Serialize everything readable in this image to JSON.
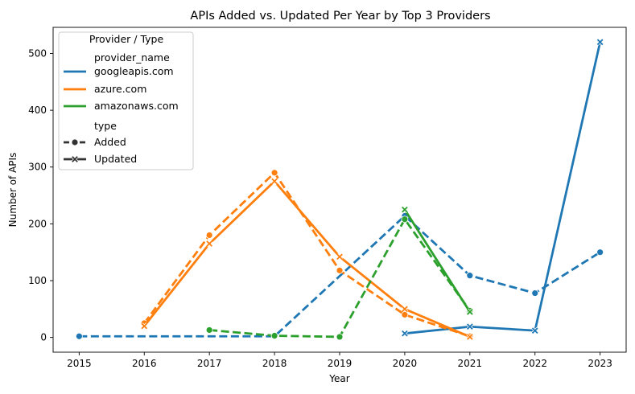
{
  "chart_data": {
    "type": "line",
    "title": "APIs Added vs. Updated Per Year by Top 3 Providers",
    "xlabel": "Year",
    "ylabel": "Number of APIs",
    "x_ticks": [
      2015,
      2016,
      2017,
      2018,
      2019,
      2020,
      2021,
      2022,
      2023
    ],
    "y_ticks": [
      0,
      100,
      200,
      300,
      400,
      500
    ],
    "xlim": [
      2014.6,
      2023.4
    ],
    "ylim": [
      -26,
      546
    ],
    "grid": false,
    "legend": {
      "title": "Provider / Type",
      "placement": "upper-left",
      "provider_header": "provider_name",
      "type_header": "type",
      "providers": [
        {
          "label": "googleapis.com",
          "color": "#1f77b4"
        },
        {
          "label": "azure.com",
          "color": "#ff7f0e"
        },
        {
          "label": "amazonaws.com",
          "color": "#2ca02c"
        }
      ],
      "types": [
        {
          "label": "Added",
          "style": "dashed",
          "marker": "circle"
        },
        {
          "label": "Updated",
          "style": "solid",
          "marker": "x"
        }
      ]
    },
    "series": [
      {
        "provider": "googleapis.com",
        "type": "Added",
        "color": "#1f77b4",
        "x": [
          2015,
          2018,
          2020,
          2021,
          2022,
          2023
        ],
        "y": [
          2,
          2,
          214,
          109,
          78,
          150
        ]
      },
      {
        "provider": "googleapis.com",
        "type": "Updated",
        "color": "#1f77b4",
        "x": [
          2020,
          2021,
          2022,
          2023
        ],
        "y": [
          7,
          19,
          12,
          520
        ]
      },
      {
        "provider": "azure.com",
        "type": "Added",
        "color": "#ff7f0e",
        "x": [
          2016,
          2017,
          2018,
          2019,
          2020,
          2021
        ],
        "y": [
          25,
          180,
          290,
          118,
          40,
          2
        ]
      },
      {
        "provider": "azure.com",
        "type": "Updated",
        "color": "#ff7f0e",
        "x": [
          2016,
          2017,
          2018,
          2019,
          2020,
          2021
        ],
        "y": [
          20,
          165,
          275,
          142,
          50,
          1
        ]
      },
      {
        "provider": "amazonaws.com",
        "type": "Added",
        "color": "#2ca02c",
        "x": [
          2017,
          2018,
          2019,
          2020,
          2021
        ],
        "y": [
          13,
          3,
          1,
          208,
          47
        ]
      },
      {
        "provider": "amazonaws.com",
        "type": "Updated",
        "color": "#2ca02c",
        "x": [
          2020,
          2021
        ],
        "y": [
          225,
          45
        ]
      }
    ]
  }
}
